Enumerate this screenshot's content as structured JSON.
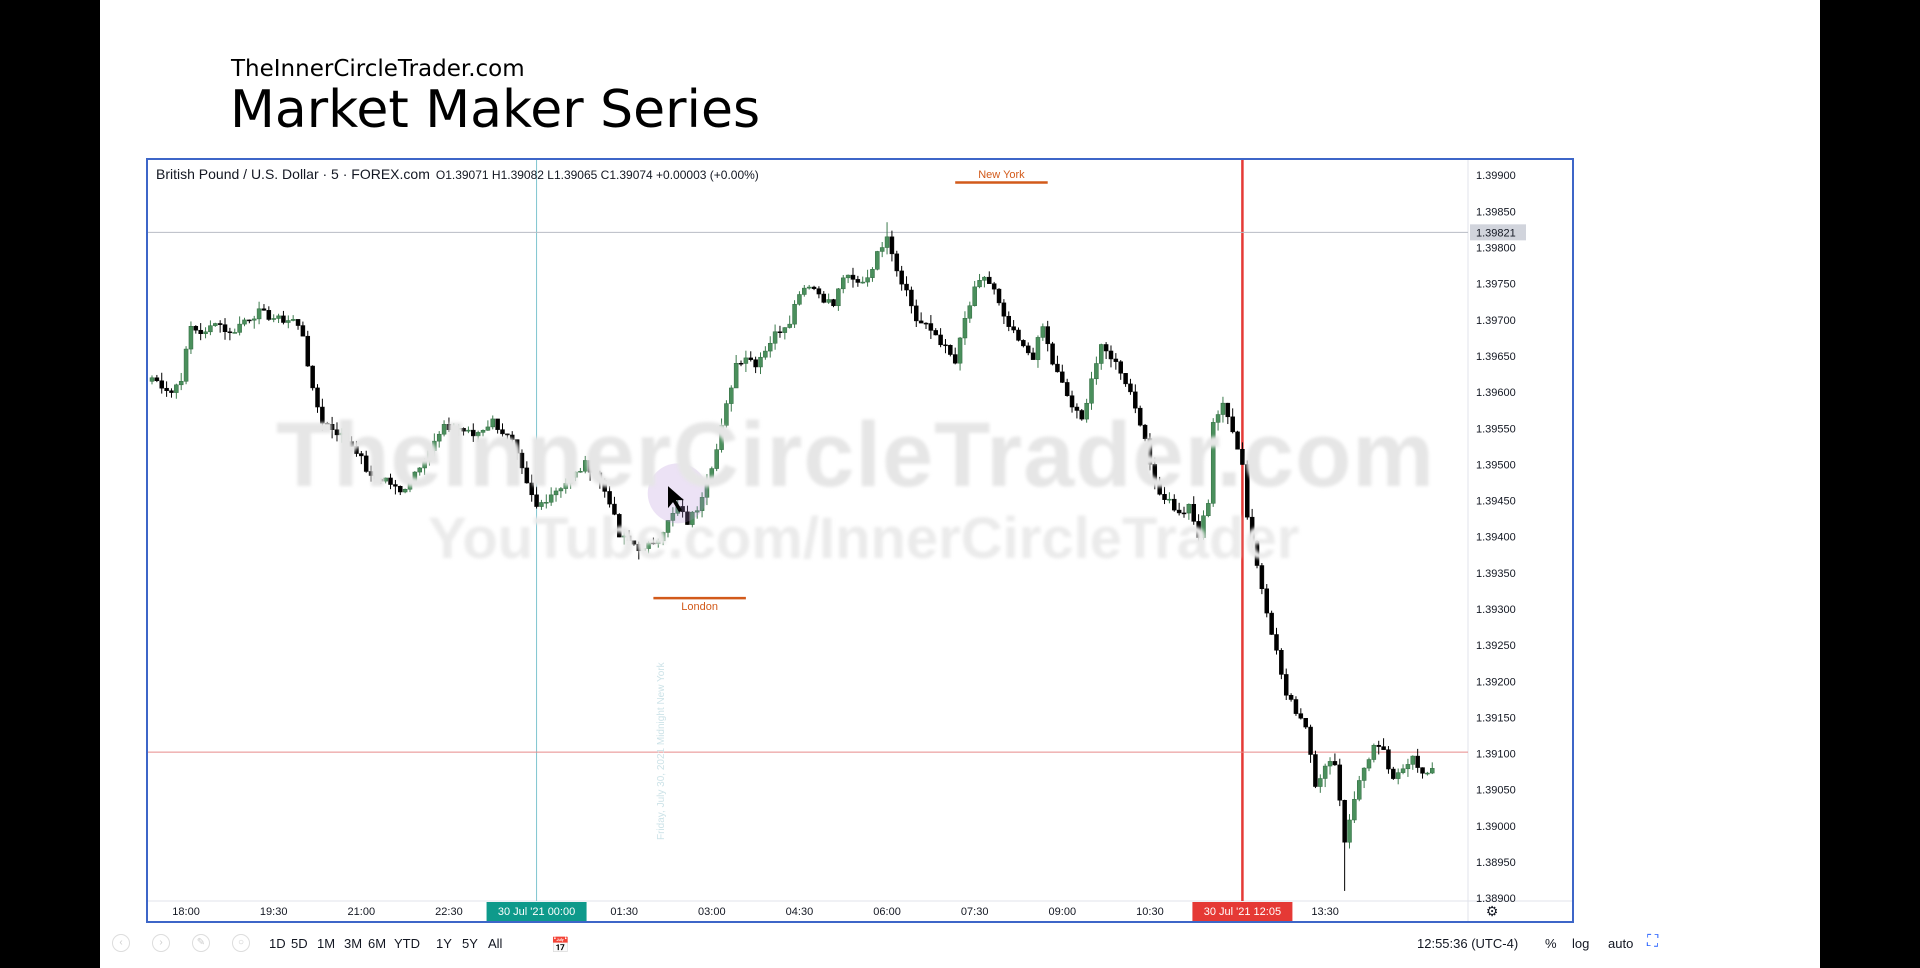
{
  "slide": {
    "site": "TheInnerCircleTrader.com",
    "title": "Market Maker Series"
  },
  "watermark": {
    "line1": "TheInnerCircleTrader.com",
    "line2": "YouTube.com/InnerCircleTrader"
  },
  "legend": {
    "symbol": "British Pound / U.S. Dollar · 5 · FOREX.com",
    "ohlc": "O1.39071 H1.39082 L1.39065 C1.39074 +0.00003 (+0.00%)"
  },
  "sessions": {
    "new_york": "New York",
    "london": "London"
  },
  "vertical_note": "Friday, July 30, 2021 Midnight New York",
  "colors": {
    "up": "#4a8f5c",
    "down": "#000000",
    "session_line": "#d25a1a",
    "price_line": "#e88a8a",
    "cursor_line": "#e53935",
    "midnight_line": "#7fc4cf",
    "time_badge_teal": "#0e9a8b",
    "time_badge_red": "#e53935",
    "frame": "#3d66c8"
  },
  "chart_data": {
    "type": "candlestick",
    "symbol": "GBPUSD",
    "timeframe": "5",
    "yticks": [
      "1.39900",
      "1.39850",
      "1.39800",
      "1.39750",
      "1.39700",
      "1.39650",
      "1.39600",
      "1.39550",
      "1.39500",
      "1.39450",
      "1.39400",
      "1.39350",
      "1.39300",
      "1.39250",
      "1.39200",
      "1.39150",
      "1.39100",
      "1.39050",
      "1.39000",
      "1.38950",
      "1.38900"
    ],
    "ylim": [
      1.38885,
      1.3991
    ],
    "xticks": [
      "18:00",
      "19:30",
      "21:00",
      "22:30",
      "01:30",
      "03:00",
      "04:30",
      "06:00",
      "07:30",
      "09:00",
      "10:30",
      "13:30"
    ],
    "xtick_index": [
      7,
      25,
      43,
      61,
      97,
      115,
      133,
      151,
      169,
      187,
      205,
      241
    ],
    "badges": [
      {
        "label": "30 Jul '21   00:00",
        "index": 79,
        "color": "teal"
      },
      {
        "label": "30 Jul '21   12:05",
        "index": 224,
        "color": "red"
      }
    ],
    "horizontal_lines": [
      {
        "price": 1.39821,
        "label": "1.39821",
        "style": "gray"
      },
      {
        "price": 1.39102,
        "style": "red"
      }
    ],
    "vertical_lines": [
      {
        "index": 79,
        "style": "midnight"
      },
      {
        "index": 224,
        "style": "cursor"
      }
    ],
    "session_marks": [
      {
        "name": "New York",
        "from_index": 165,
        "to_index": 184,
        "price": 1.3989
      },
      {
        "name": "London",
        "from_index": 103,
        "to_index": 122,
        "price": 1.39315
      }
    ],
    "anchors": [
      [
        0,
        1.3962
      ],
      [
        4,
        1.396
      ],
      [
        6,
        1.3962
      ],
      [
        8,
        1.3969
      ],
      [
        11,
        1.3968
      ],
      [
        13,
        1.397
      ],
      [
        16,
        1.3968
      ],
      [
        19,
        1.397
      ],
      [
        22,
        1.3971
      ],
      [
        26,
        1.397
      ],
      [
        29,
        1.397
      ],
      [
        31,
        1.3968
      ],
      [
        33,
        1.396
      ],
      [
        35,
        1.3956
      ],
      [
        39,
        1.3954
      ],
      [
        42,
        1.3952
      ],
      [
        45,
        1.3948
      ],
      [
        48,
        1.3948
      ],
      [
        51,
        1.3946
      ],
      [
        54,
        1.3949
      ],
      [
        57,
        1.3952
      ],
      [
        60,
        1.3955
      ],
      [
        63,
        1.3955
      ],
      [
        66,
        1.3954
      ],
      [
        70,
        1.3956
      ],
      [
        74,
        1.3953
      ],
      [
        77,
        1.3947
      ],
      [
        79,
        1.3944
      ],
      [
        82,
        1.3946
      ],
      [
        86,
        1.3948
      ],
      [
        89,
        1.395
      ],
      [
        91,
        1.3949
      ],
      [
        94,
        1.3945
      ],
      [
        96,
        1.394
      ],
      [
        99,
        1.3939
      ],
      [
        101,
        1.3938
      ],
      [
        104,
        1.394
      ],
      [
        106,
        1.3942
      ],
      [
        108,
        1.3944
      ],
      [
        110,
        1.3942
      ],
      [
        112,
        1.3944
      ],
      [
        114,
        1.3948
      ],
      [
        116,
        1.3952
      ],
      [
        118,
        1.3958
      ],
      [
        120,
        1.3964
      ],
      [
        122,
        1.3965
      ],
      [
        124,
        1.3964
      ],
      [
        126,
        1.3966
      ],
      [
        128,
        1.3968
      ],
      [
        131,
        1.397
      ],
      [
        133,
        1.3974
      ],
      [
        135,
        1.3975
      ],
      [
        138,
        1.3973
      ],
      [
        140,
        1.3972
      ],
      [
        142,
        1.3976
      ],
      [
        145,
        1.3975
      ],
      [
        147,
        1.3976
      ],
      [
        149,
        1.3979
      ],
      [
        151,
        1.3982
      ],
      [
        153,
        1.3977
      ],
      [
        155,
        1.3974
      ],
      [
        157,
        1.397
      ],
      [
        159,
        1.3969
      ],
      [
        161,
        1.3968
      ],
      [
        163,
        1.3966
      ],
      [
        165,
        1.3964
      ],
      [
        167,
        1.397
      ],
      [
        169,
        1.3974
      ],
      [
        171,
        1.3976
      ],
      [
        173,
        1.3974
      ],
      [
        175,
        1.397
      ],
      [
        177,
        1.3968
      ],
      [
        179,
        1.3966
      ],
      [
        181,
        1.3965
      ],
      [
        183,
        1.3969
      ],
      [
        185,
        1.3964
      ],
      [
        187,
        1.3961
      ],
      [
        189,
        1.3958
      ],
      [
        191,
        1.3956
      ],
      [
        193,
        1.3962
      ],
      [
        195,
        1.3966
      ],
      [
        197,
        1.3965
      ],
      [
        199,
        1.3963
      ],
      [
        201,
        1.396
      ],
      [
        203,
        1.3956
      ],
      [
        205,
        1.395
      ],
      [
        207,
        1.3946
      ],
      [
        209,
        1.3945
      ],
      [
        211,
        1.3943
      ],
      [
        213,
        1.3944
      ],
      [
        215,
        1.394
      ],
      [
        217,
        1.3945
      ],
      [
        218,
        1.3956
      ],
      [
        220,
        1.3958
      ],
      [
        222,
        1.3955
      ],
      [
        224,
        1.395
      ],
      [
        225,
        1.3943
      ],
      [
        227,
        1.3936
      ],
      [
        229,
        1.393
      ],
      [
        231,
        1.3924
      ],
      [
        233,
        1.3918
      ],
      [
        235,
        1.3916
      ],
      [
        237,
        1.3914
      ],
      [
        239,
        1.3906
      ],
      [
        241,
        1.3908
      ],
      [
        243,
        1.3909
      ],
      [
        245,
        1.3898
      ],
      [
        247,
        1.3904
      ],
      [
        249,
        1.3908
      ],
      [
        251,
        1.3911
      ],
      [
        253,
        1.391
      ],
      [
        255,
        1.3906
      ],
      [
        257,
        1.3908
      ],
      [
        259,
        1.391
      ],
      [
        261,
        1.3907
      ],
      [
        263,
        1.39074
      ]
    ],
    "first_index": 0,
    "last_index": 263,
    "low_index": 245,
    "low_value": 1.3891,
    "high_index": 151,
    "high_value": 1.39835
  },
  "toolbar": {
    "ranges": [
      "1D",
      "5D",
      "1M",
      "3M",
      "6M",
      "YTD",
      "1Y",
      "5Y",
      "All"
    ],
    "clock": "12:55:36 (UTC-4)",
    "percent": "%",
    "log": "log",
    "auto": "auto"
  }
}
